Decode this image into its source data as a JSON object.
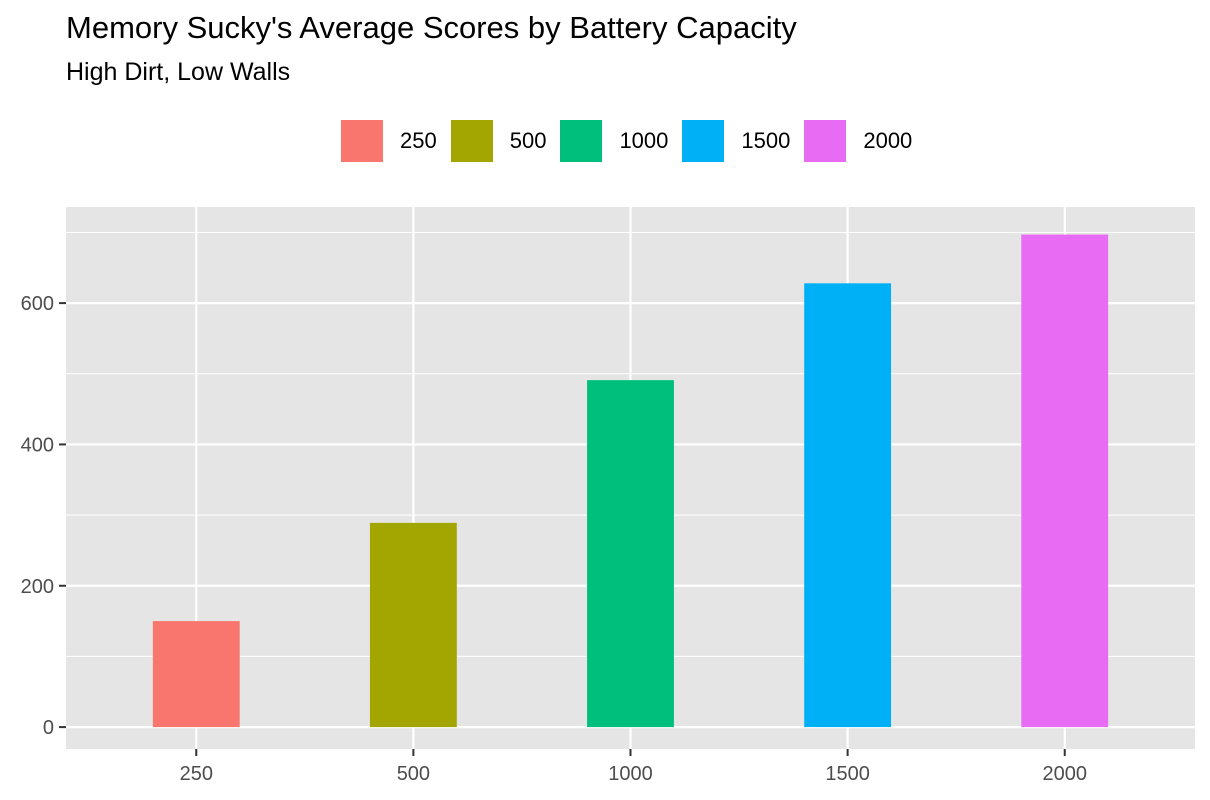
{
  "chart_data": {
    "type": "bar",
    "title": "Memory Sucky's Average Scores by Battery Capacity",
    "subtitle": "High Dirt, Low Walls",
    "xlabel": "",
    "ylabel": "",
    "categories": [
      "250",
      "500",
      "1000",
      "1500",
      "2000"
    ],
    "values": [
      150,
      289,
      491,
      628,
      697
    ],
    "colors": [
      "#F8766D",
      "#A3A500",
      "#00BF7D",
      "#00B0F6",
      "#E76BF3"
    ],
    "ylim": [
      -31,
      736
    ],
    "yticks": [
      0,
      200,
      400,
      600
    ],
    "ytick_labels": [
      "0",
      "200",
      "400",
      "600"
    ],
    "grid": true,
    "legend": {
      "position": "top",
      "entries": [
        "250",
        "500",
        "1000",
        "1500",
        "2000"
      ]
    },
    "panel_background": "#E5E5E5",
    "grid_color": "#FFFFFF"
  }
}
